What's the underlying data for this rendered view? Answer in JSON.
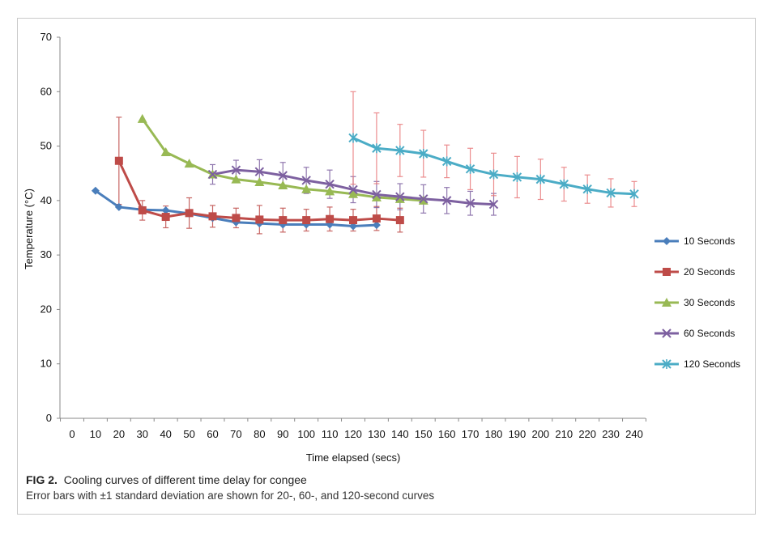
{
  "figure": {
    "label": "FIG 2.",
    "title": "Cooling curves of different time delay for congee",
    "note": "Error bars with ±1 standard deviation are shown for 20-, 60-, and 120-second curves"
  },
  "chart_data": {
    "type": "line",
    "xlabel": "Time elapsed (secs)",
    "ylabel": "Temperature (°C)",
    "xlim": [
      0,
      240
    ],
    "ylim": [
      0,
      70
    ],
    "xticks": [
      0,
      10,
      20,
      30,
      40,
      50,
      60,
      70,
      80,
      90,
      100,
      110,
      120,
      130,
      140,
      150,
      160,
      170,
      180,
      190,
      200,
      210,
      220,
      230,
      240
    ],
    "yticks": [
      0,
      10,
      20,
      30,
      40,
      50,
      60,
      70
    ],
    "grid": false,
    "legend_position": "right",
    "series": [
      {
        "name": "10 Seconds",
        "color": "#4a7ebb",
        "marker": "diamond",
        "x": [
          10,
          20,
          30,
          40,
          50,
          60,
          70,
          80,
          90,
          100,
          110,
          120,
          130
        ],
        "y": [
          41.8,
          38.8,
          38.3,
          38.2,
          37.6,
          36.8,
          36.0,
          35.8,
          35.6,
          35.6,
          35.6,
          35.3,
          35.5
        ]
      },
      {
        "name": "20 Seconds",
        "color": "#be4b48",
        "marker": "square",
        "x": [
          20,
          30,
          40,
          50,
          60,
          70,
          80,
          90,
          100,
          110,
          120,
          130,
          140
        ],
        "y": [
          47.3,
          38.2,
          37.0,
          37.7,
          37.1,
          36.8,
          36.5,
          36.4,
          36.4,
          36.6,
          36.4,
          36.7,
          36.4
        ],
        "err": [
          8.0,
          1.8,
          2.0,
          2.8,
          2.0,
          1.8,
          2.6,
          2.2,
          2.0,
          2.2,
          2.0,
          2.2,
          2.2
        ]
      },
      {
        "name": "30 Seconds",
        "color": "#98b954",
        "marker": "triangle",
        "x": [
          30,
          40,
          50,
          60,
          70,
          80,
          90,
          100,
          110,
          120,
          130,
          140,
          150
        ],
        "y": [
          55.0,
          48.9,
          46.8,
          44.8,
          43.9,
          43.4,
          42.8,
          42.1,
          41.7,
          41.2,
          40.6,
          40.3,
          40.0
        ]
      },
      {
        "name": "60 Seconds",
        "color": "#7d60a0",
        "marker": "x",
        "x": [
          60,
          70,
          80,
          90,
          100,
          110,
          120,
          130,
          140,
          150,
          160,
          170,
          180
        ],
        "y": [
          44.8,
          45.6,
          45.3,
          44.6,
          43.7,
          43.0,
          42.0,
          41.1,
          40.7,
          40.3,
          40.0,
          39.5,
          39.3
        ],
        "err": [
          1.8,
          1.8,
          2.2,
          2.4,
          2.4,
          2.6,
          2.4,
          2.4,
          2.4,
          2.6,
          2.4,
          2.2,
          2.0
        ]
      },
      {
        "name": "120 Seconds",
        "color": "#4bacc6",
        "marker": "star",
        "x": [
          120,
          130,
          140,
          150,
          160,
          170,
          180,
          190,
          200,
          210,
          220,
          230,
          240
        ],
        "y": [
          51.5,
          49.6,
          49.2,
          48.6,
          47.2,
          45.8,
          44.8,
          44.3,
          43.9,
          43.0,
          42.1,
          41.4,
          41.2
        ],
        "err": [
          8.5,
          6.5,
          4.8,
          4.3,
          3.0,
          3.8,
          3.9,
          3.8,
          3.7,
          3.1,
          2.6,
          2.6,
          2.3
        ],
        "err_color": "#e8797b"
      }
    ]
  }
}
